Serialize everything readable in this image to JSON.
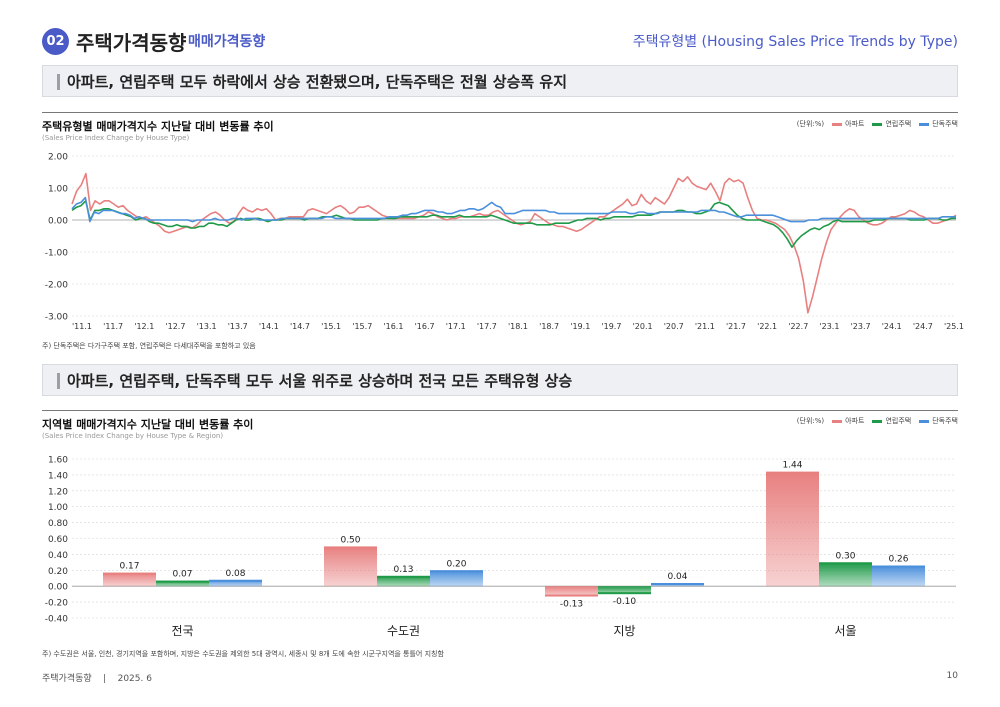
{
  "header": {
    "badge": "02",
    "title": "주택가격동향",
    "subtitle": "매매가격동향",
    "right_title": "주택유형별 (Housing Sales Price Trends by Type)"
  },
  "section1": {
    "headline": "아파트, 연립주택 모두 하락에서 상승 전환됐으며, 단독주택은 전월 상승폭 유지"
  },
  "section2": {
    "headline": "아파트, 연립주택, 단독주택 모두 서울 위주로 상승하며 전국 모든 주택유형 상승"
  },
  "chart1": {
    "title": "주택유형별 매매가격지수 지난달 대비 변동률 추이",
    "subtitle": "(Sales Price Index Change by House Type)",
    "unit": "(단위:%)",
    "note": "주) 단독주택은 다가구주택 포함, 연립주택은 다세대주택을 포함하고 있음"
  },
  "chart2": {
    "title": "지역별 매매가격지수 지난달 대비 변동률 추이",
    "subtitle": "(Sales Price Index Change by House Type & Region)",
    "unit": "(단위:%)",
    "note": "주) 수도권은 서울, 인천, 경기지역을 포함하며, 지방은 수도권을 제외한 5대 광역시, 세종시 및 8개 도에 속한 시군구지역을 통틀어 지칭함"
  },
  "footer": {
    "text": "주택가격동향    |    2025. 6",
    "page": "10"
  },
  "colors": {
    "apt": "#e88080",
    "row": "#1f9a48",
    "det": "#4a8fdc"
  },
  "chart_data": [
    {
      "type": "line",
      "ylim": [
        -3.0,
        2.0
      ],
      "yticks": [
        "2.00",
        "1.00",
        "0.00",
        "-1.00",
        "-2.00",
        "-3.00"
      ],
      "xticks": [
        "'11.1",
        "'11.7",
        "'12.1",
        "'12.7",
        "'13.1",
        "'13.7",
        "'14.1",
        "'14.7",
        "'15.1",
        "'15.7",
        "'16.1",
        "'16.7",
        "'17.1",
        "'17.7",
        "'18.1",
        "'18.7",
        "'19.1",
        "'19.7",
        "'20.1",
        "'20.7",
        "'21.1",
        "'21.7",
        "'22.1",
        "'22.7",
        "'23.1",
        "'23.7",
        "'24.1",
        "'24.7",
        "'25.1"
      ],
      "legend": [
        "아파트",
        "연립주택",
        "단독주택"
      ],
      "series": [
        {
          "name": "아파트",
          "values": [
            0.5,
            0.9,
            1.1,
            1.45,
            0.3,
            0.6,
            0.5,
            0.6,
            0.6,
            0.5,
            0.4,
            0.45,
            0.3,
            0.2,
            0.1,
            0.05,
            0.1,
            0.0,
            -0.1,
            -0.2,
            -0.35,
            -0.4,
            -0.35,
            -0.3,
            -0.25,
            -0.2,
            -0.25,
            -0.15,
            0.0,
            0.1,
            0.2,
            0.25,
            0.15,
            0.0,
            -0.1,
            -0.05,
            0.2,
            0.4,
            0.3,
            0.25,
            0.35,
            0.3,
            0.35,
            0.2,
            0.0,
            0.05,
            0.05,
            0.1,
            0.1,
            0.1,
            0.1,
            0.3,
            0.35,
            0.3,
            0.25,
            0.2,
            0.3,
            0.4,
            0.45,
            0.35,
            0.2,
            0.25,
            0.4,
            0.4,
            0.45,
            0.35,
            0.25,
            0.15,
            0.1,
            0.05,
            0.05,
            0.05,
            0.05,
            0.05,
            0.05,
            0.1,
            0.15,
            0.25,
            0.2,
            0.1,
            0.05,
            0.0,
            0.05,
            0.05,
            0.1,
            0.1,
            0.1,
            0.15,
            0.2,
            0.15,
            0.15,
            0.25,
            0.3,
            0.2,
            0.1,
            0.0,
            -0.1,
            -0.15,
            -0.1,
            -0.05,
            0.2,
            0.1,
            0.0,
            -0.1,
            -0.15,
            -0.2,
            -0.2,
            -0.25,
            -0.3,
            -0.35,
            -0.3,
            -0.2,
            -0.1,
            0.0,
            0.1,
            0.1,
            0.2,
            0.3,
            0.4,
            0.5,
            0.65,
            0.45,
            0.5,
            0.8,
            0.6,
            0.5,
            0.7,
            0.6,
            0.5,
            0.7,
            1.0,
            1.3,
            1.2,
            1.35,
            1.15,
            1.05,
            1.0,
            0.95,
            1.15,
            0.9,
            0.6,
            1.15,
            1.3,
            1.2,
            1.25,
            1.15,
            0.7,
            0.3,
            0.05,
            0.0,
            0.0,
            -0.05,
            -0.1,
            -0.2,
            -0.3,
            -0.5,
            -0.8,
            -1.2,
            -1.9,
            -2.9,
            -2.4,
            -1.8,
            -1.2,
            -0.7,
            -0.3,
            -0.1,
            0.1,
            0.25,
            0.35,
            0.3,
            0.1,
            0.0,
            -0.1,
            -0.15,
            -0.15,
            -0.1,
            0.0,
            0.1,
            0.1,
            0.15,
            0.2,
            0.3,
            0.25,
            0.15,
            0.1,
            0.0,
            -0.1,
            -0.1,
            -0.05,
            0.0,
            0.05,
            0.15
          ]
        },
        {
          "name": "연립주택",
          "values": [
            0.3,
            0.4,
            0.45,
            0.6,
            0.0,
            0.3,
            0.3,
            0.35,
            0.35,
            0.3,
            0.25,
            0.2,
            0.15,
            0.1,
            0.0,
            0.05,
            0.05,
            -0.05,
            -0.1,
            -0.1,
            -0.15,
            -0.2,
            -0.2,
            -0.15,
            -0.2,
            -0.2,
            -0.25,
            -0.25,
            -0.2,
            -0.2,
            -0.1,
            -0.1,
            -0.15,
            -0.15,
            -0.2,
            -0.1,
            0.0,
            0.05,
            0.0,
            0.0,
            0.05,
            0.05,
            0.0,
            -0.05,
            0.0,
            0.0,
            0.0,
            0.05,
            0.05,
            0.05,
            0.05,
            0.0,
            0.05,
            0.05,
            0.05,
            0.1,
            0.1,
            0.1,
            0.15,
            0.1,
            0.05,
            0.05,
            0.0,
            0.0,
            0.0,
            0.0,
            0.0,
            0.0,
            0.05,
            0.05,
            0.05,
            0.05,
            0.1,
            0.1,
            0.1,
            0.1,
            0.1,
            0.1,
            0.1,
            0.15,
            0.15,
            0.1,
            0.1,
            0.1,
            0.1,
            0.15,
            0.1,
            0.1,
            0.1,
            0.1,
            0.1,
            0.1,
            0.15,
            0.1,
            0.05,
            0.0,
            -0.05,
            -0.1,
            -0.1,
            -0.1,
            -0.1,
            -0.1,
            -0.15,
            -0.15,
            -0.15,
            -0.15,
            -0.1,
            -0.1,
            -0.1,
            -0.1,
            -0.05,
            0.0,
            0.0,
            0.05,
            0.05,
            0.05,
            0.0,
            0.05,
            0.05,
            0.1,
            0.1,
            0.1,
            0.1,
            0.1,
            0.15,
            0.15,
            0.15,
            0.15,
            0.2,
            0.25,
            0.25,
            0.25,
            0.25,
            0.3,
            0.3,
            0.25,
            0.25,
            0.2,
            0.2,
            0.25,
            0.3,
            0.5,
            0.55,
            0.5,
            0.45,
            0.3,
            0.15,
            0.05,
            0.0,
            0.0,
            0.0,
            0.0,
            -0.05,
            -0.1,
            -0.15,
            -0.25,
            -0.4,
            -0.6,
            -0.85,
            -0.65,
            -0.5,
            -0.4,
            -0.3,
            -0.25,
            -0.3,
            -0.2,
            -0.15,
            -0.05,
            0.0,
            -0.05,
            -0.05,
            -0.05,
            -0.05,
            -0.05,
            -0.05,
            -0.05,
            0.0,
            0.0,
            0.0,
            0.05,
            0.05,
            0.05,
            0.05,
            0.05,
            0.0,
            0.0,
            0.0,
            0.0,
            0.05,
            0.05,
            0.05,
            0.0,
            0.0,
            0.05,
            0.05
          ]
        },
        {
          "name": "단독주택",
          "values": [
            0.35,
            0.5,
            0.55,
            0.7,
            -0.05,
            0.25,
            0.2,
            0.3,
            0.3,
            0.3,
            0.25,
            0.2,
            0.2,
            0.15,
            0.05,
            0.1,
            0.05,
            0.0,
            0.0,
            0.0,
            0.0,
            0.0,
            0.0,
            0.0,
            0.0,
            0.0,
            0.0,
            -0.05,
            0.0,
            0.0,
            0.0,
            0.0,
            0.05,
            0.0,
            0.0,
            0.0,
            0.05,
            0.05,
            0.0,
            0.05,
            0.05,
            0.05,
            0.0,
            0.0,
            0.0,
            0.0,
            0.0,
            0.05,
            0.05,
            0.05,
            0.05,
            0.05,
            0.05,
            0.05,
            0.05,
            0.05,
            0.05,
            0.1,
            0.1,
            0.05,
            0.05,
            0.05,
            0.05,
            0.05,
            0.05,
            0.05,
            0.05,
            0.05,
            0.05,
            0.05,
            0.05,
            0.1,
            0.1,
            0.1,
            0.15,
            0.15,
            0.2,
            0.2,
            0.25,
            0.3,
            0.3,
            0.3,
            0.25,
            0.25,
            0.2,
            0.2,
            0.25,
            0.3,
            0.3,
            0.35,
            0.35,
            0.3,
            0.35,
            0.45,
            0.55,
            0.45,
            0.4,
            0.2,
            0.2,
            0.2,
            0.25,
            0.3,
            0.3,
            0.3,
            0.3,
            0.3,
            0.3,
            0.25,
            0.25,
            0.2,
            0.2,
            0.2,
            0.2,
            0.2,
            0.2,
            0.2,
            0.2,
            0.2,
            0.2,
            0.2,
            0.2,
            0.25,
            0.25,
            0.25,
            0.25,
            0.2,
            0.2,
            0.25,
            0.25,
            0.2,
            0.2,
            0.2,
            0.25,
            0.25,
            0.25,
            0.25,
            0.25,
            0.25,
            0.25,
            0.25,
            0.25,
            0.3,
            0.3,
            0.3,
            0.3,
            0.25,
            0.25,
            0.2,
            0.15,
            0.1,
            0.1,
            0.15,
            0.15,
            0.15,
            0.15,
            0.15,
            0.15,
            0.15,
            0.1,
            0.05,
            0.0,
            -0.05,
            -0.05,
            -0.05,
            -0.05,
            0.0,
            0.0,
            0.0,
            0.05,
            0.05,
            0.05,
            0.05,
            0.05,
            0.05,
            0.05,
            0.05,
            0.05,
            0.05,
            0.05,
            0.05,
            0.05,
            0.05,
            0.05,
            0.05,
            0.05,
            0.05,
            0.05,
            0.05,
            0.05,
            0.05,
            0.05,
            0.05,
            0.05,
            0.05,
            0.05,
            0.1,
            0.1,
            0.1,
            0.1
          ]
        }
      ]
    },
    {
      "type": "bar",
      "ylim": [
        -0.4,
        1.6
      ],
      "yticks": [
        "1.60",
        "1.40",
        "1.20",
        "1.00",
        "0.80",
        "0.60",
        "0.40",
        "0.20",
        "0.00",
        "-0.20",
        "-0.40"
      ],
      "categories": [
        "전국",
        "수도권",
        "지방",
        "서울"
      ],
      "legend": [
        "아파트",
        "연립주택",
        "단독주택"
      ],
      "series": [
        {
          "name": "아파트",
          "values": [
            0.17,
            0.5,
            -0.13,
            1.44
          ],
          "labels": [
            "0.17",
            "0.50",
            "-0.13",
            "1.44"
          ]
        },
        {
          "name": "연립주택",
          "values": [
            0.07,
            0.13,
            -0.1,
            0.3
          ],
          "labels": [
            "0.07",
            "0.13",
            "-0.10",
            "0.30"
          ]
        },
        {
          "name": "단독주택",
          "values": [
            0.08,
            0.2,
            0.04,
            0.26
          ],
          "labels": [
            "0.08",
            "0.20",
            "0.04",
            "0.26"
          ]
        }
      ]
    }
  ]
}
